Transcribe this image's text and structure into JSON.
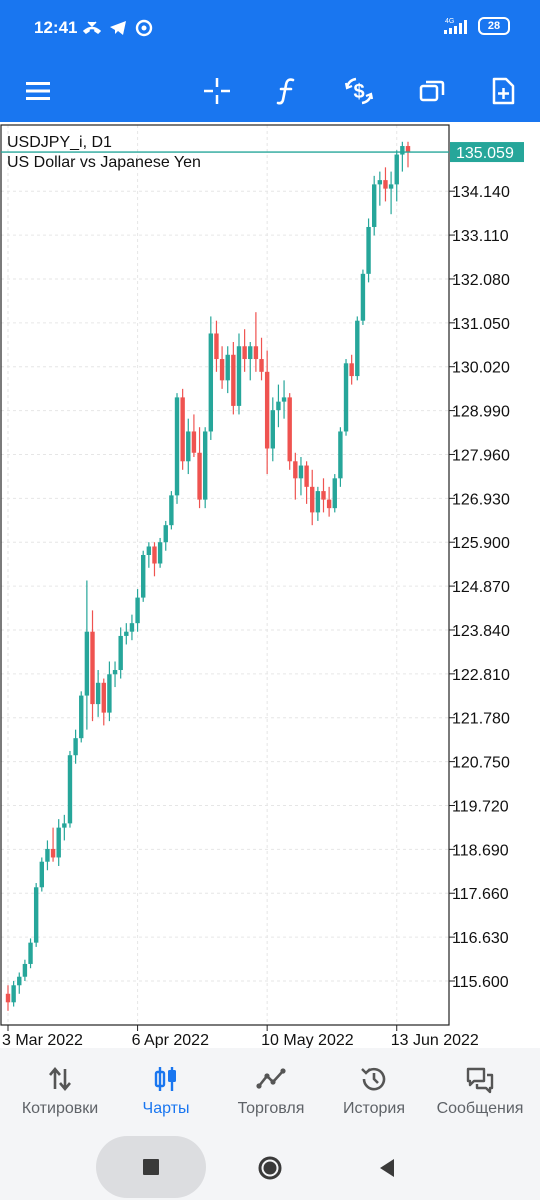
{
  "status": {
    "time": "12:41",
    "network": "4G",
    "battery": "28"
  },
  "toolbar": {
    "icons": [
      "menu-icon",
      "crosshair-icon",
      "function-icon",
      "trade-dollar-icon",
      "windows-icon",
      "new-document-icon"
    ]
  },
  "chart": {
    "symbol": "USDJPY_i, D1",
    "description": "US Dollar vs Japanese Yen",
    "current_price": "135.059",
    "price_labels": [
      "134.140",
      "133.110",
      "132.080",
      "131.050",
      "130.020",
      "128.990",
      "127.960",
      "126.930",
      "125.900",
      "124.870",
      "123.840",
      "122.810",
      "121.780",
      "120.750",
      "119.720",
      "118.690",
      "117.660",
      "116.630",
      "115.600"
    ],
    "date_labels": [
      "3 Mar 2022",
      "6 Apr 2022",
      "10 May 2022",
      "13 Jun 2022"
    ],
    "colors": {
      "bull": "#26a69a",
      "bear": "#ef5350",
      "grid": "#e6e6e6",
      "price_tag": "#26a69a"
    }
  },
  "chart_data": {
    "type": "candlestick",
    "symbol": "USDJPY_i",
    "timeframe": "D1",
    "ylim": [
      114.9,
      135.3
    ],
    "candles": [
      {
        "o": 115.3,
        "h": 115.5,
        "l": 114.9,
        "c": 115.1
      },
      {
        "o": 115.1,
        "h": 115.6,
        "l": 115.0,
        "c": 115.5
      },
      {
        "o": 115.5,
        "h": 115.8,
        "l": 115.3,
        "c": 115.7
      },
      {
        "o": 115.7,
        "h": 116.1,
        "l": 115.6,
        "c": 116.0
      },
      {
        "o": 116.0,
        "h": 116.6,
        "l": 115.9,
        "c": 116.5
      },
      {
        "o": 116.5,
        "h": 117.9,
        "l": 116.4,
        "c": 117.8
      },
      {
        "o": 117.8,
        "h": 118.5,
        "l": 117.7,
        "c": 118.4
      },
      {
        "o": 118.4,
        "h": 118.9,
        "l": 118.2,
        "c": 118.7
      },
      {
        "o": 118.7,
        "h": 119.2,
        "l": 118.4,
        "c": 118.5
      },
      {
        "o": 118.5,
        "h": 119.4,
        "l": 118.3,
        "c": 119.2
      },
      {
        "o": 119.2,
        "h": 119.5,
        "l": 118.9,
        "c": 119.3
      },
      {
        "o": 119.3,
        "h": 121.0,
        "l": 119.2,
        "c": 120.9
      },
      {
        "o": 120.9,
        "h": 121.5,
        "l": 120.7,
        "c": 121.3
      },
      {
        "o": 121.3,
        "h": 122.4,
        "l": 121.2,
        "c": 122.3
      },
      {
        "o": 122.3,
        "h": 125.0,
        "l": 121.5,
        "c": 123.8
      },
      {
        "o": 123.8,
        "h": 124.3,
        "l": 121.7,
        "c": 122.1
      },
      {
        "o": 122.1,
        "h": 122.9,
        "l": 121.8,
        "c": 122.6
      },
      {
        "o": 122.6,
        "h": 122.7,
        "l": 121.6,
        "c": 121.9
      },
      {
        "o": 121.9,
        "h": 123.1,
        "l": 121.7,
        "c": 122.8
      },
      {
        "o": 122.8,
        "h": 123.1,
        "l": 122.5,
        "c": 122.9
      },
      {
        "o": 122.9,
        "h": 123.9,
        "l": 122.7,
        "c": 123.7
      },
      {
        "o": 123.7,
        "h": 124.0,
        "l": 123.5,
        "c": 123.8
      },
      {
        "o": 123.8,
        "h": 124.2,
        "l": 123.6,
        "c": 124.0
      },
      {
        "o": 124.0,
        "h": 124.8,
        "l": 123.8,
        "c": 124.6
      },
      {
        "o": 124.6,
        "h": 125.7,
        "l": 124.5,
        "c": 125.6
      },
      {
        "o": 125.6,
        "h": 125.9,
        "l": 125.3,
        "c": 125.8
      },
      {
        "o": 125.8,
        "h": 125.9,
        "l": 125.1,
        "c": 125.4
      },
      {
        "o": 125.4,
        "h": 126.0,
        "l": 125.3,
        "c": 125.9
      },
      {
        "o": 125.9,
        "h": 126.4,
        "l": 125.7,
        "c": 126.3
      },
      {
        "o": 126.3,
        "h": 127.1,
        "l": 126.2,
        "c": 127.0
      },
      {
        "o": 127.0,
        "h": 129.4,
        "l": 126.8,
        "c": 129.3
      },
      {
        "o": 129.3,
        "h": 129.5,
        "l": 127.6,
        "c": 127.8
      },
      {
        "o": 127.8,
        "h": 128.8,
        "l": 127.5,
        "c": 128.5
      },
      {
        "o": 128.5,
        "h": 128.9,
        "l": 127.9,
        "c": 128.0
      },
      {
        "o": 128.0,
        "h": 128.6,
        "l": 126.7,
        "c": 126.9
      },
      {
        "o": 126.9,
        "h": 128.6,
        "l": 126.7,
        "c": 128.5
      },
      {
        "o": 128.5,
        "h": 131.2,
        "l": 128.3,
        "c": 130.8
      },
      {
        "o": 130.8,
        "h": 131.1,
        "l": 129.9,
        "c": 130.2
      },
      {
        "o": 130.2,
        "h": 130.5,
        "l": 129.5,
        "c": 129.7
      },
      {
        "o": 129.7,
        "h": 130.5,
        "l": 129.4,
        "c": 130.3
      },
      {
        "o": 130.3,
        "h": 130.6,
        "l": 128.9,
        "c": 129.1
      },
      {
        "o": 129.1,
        "h": 130.8,
        "l": 128.9,
        "c": 130.5
      },
      {
        "o": 130.5,
        "h": 130.9,
        "l": 129.9,
        "c": 130.2
      },
      {
        "o": 130.2,
        "h": 130.6,
        "l": 129.7,
        "c": 130.5
      },
      {
        "o": 130.5,
        "h": 131.3,
        "l": 129.9,
        "c": 130.2
      },
      {
        "o": 130.2,
        "h": 130.7,
        "l": 129.7,
        "c": 129.9
      },
      {
        "o": 129.9,
        "h": 130.4,
        "l": 127.5,
        "c": 128.1
      },
      {
        "o": 128.1,
        "h": 129.3,
        "l": 127.8,
        "c": 129.0
      },
      {
        "o": 129.0,
        "h": 129.6,
        "l": 128.6,
        "c": 129.2
      },
      {
        "o": 129.2,
        "h": 129.7,
        "l": 128.8,
        "c": 129.3
      },
      {
        "o": 129.3,
        "h": 129.4,
        "l": 127.6,
        "c": 127.8
      },
      {
        "o": 127.8,
        "h": 128.0,
        "l": 126.9,
        "c": 127.4
      },
      {
        "o": 127.4,
        "h": 127.9,
        "l": 127.0,
        "c": 127.7
      },
      {
        "o": 127.7,
        "h": 127.8,
        "l": 126.8,
        "c": 127.2
      },
      {
        "o": 127.2,
        "h": 127.6,
        "l": 126.3,
        "c": 126.6
      },
      {
        "o": 126.6,
        "h": 127.2,
        "l": 126.4,
        "c": 127.1
      },
      {
        "o": 127.1,
        "h": 127.4,
        "l": 126.6,
        "c": 126.9
      },
      {
        "o": 126.9,
        "h": 127.2,
        "l": 126.5,
        "c": 126.7
      },
      {
        "o": 126.7,
        "h": 127.5,
        "l": 126.6,
        "c": 127.4
      },
      {
        "o": 127.4,
        "h": 128.6,
        "l": 127.2,
        "c": 128.5
      },
      {
        "o": 128.5,
        "h": 130.2,
        "l": 128.4,
        "c": 130.1
      },
      {
        "o": 130.1,
        "h": 130.3,
        "l": 129.6,
        "c": 129.8
      },
      {
        "o": 129.8,
        "h": 131.2,
        "l": 129.7,
        "c": 131.1
      },
      {
        "o": 131.1,
        "h": 132.3,
        "l": 131.0,
        "c": 132.2
      },
      {
        "o": 132.2,
        "h": 133.5,
        "l": 132.0,
        "c": 133.3
      },
      {
        "o": 133.3,
        "h": 134.5,
        "l": 133.1,
        "c": 134.3
      },
      {
        "o": 134.3,
        "h": 134.6,
        "l": 133.8,
        "c": 134.4
      },
      {
        "o": 134.4,
        "h": 134.7,
        "l": 133.9,
        "c": 134.2
      },
      {
        "o": 134.2,
        "h": 134.6,
        "l": 133.6,
        "c": 134.3
      },
      {
        "o": 134.3,
        "h": 135.1,
        "l": 133.9,
        "c": 135.0
      },
      {
        "o": 135.0,
        "h": 135.3,
        "l": 134.6,
        "c": 135.2
      },
      {
        "o": 135.2,
        "h": 135.3,
        "l": 134.7,
        "c": 135.06
      }
    ]
  },
  "nav": {
    "items": [
      {
        "label": "Котировки"
      },
      {
        "label": "Чарты"
      },
      {
        "label": "Торговля"
      },
      {
        "label": "История"
      },
      {
        "label": "Сообщения"
      }
    ]
  }
}
